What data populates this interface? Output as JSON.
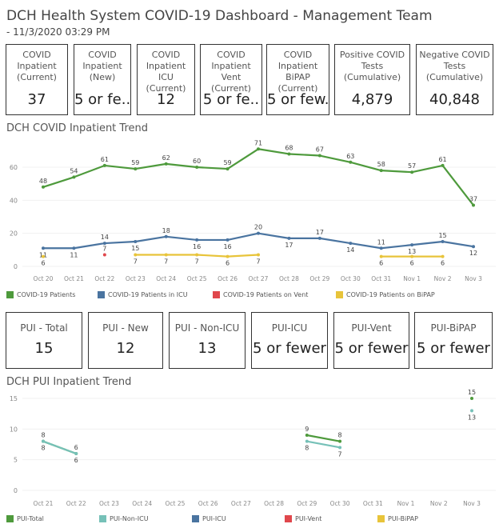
{
  "header": {
    "title": "DCH Health System COVID-19 Dashboard - Management Team",
    "subtitle": "- 11/3/2020 03:29 PM"
  },
  "kpis_top": [
    {
      "label": "COVID Inpatient (Current)",
      "value": "37"
    },
    {
      "label": "COVID Inpatient (New)",
      "value": "5 or fe.."
    },
    {
      "label": "COVID Inpatient ICU (Current)",
      "value": "12"
    },
    {
      "label": "COVID Inpatient Vent (Current)",
      "value": "5 or fe.."
    },
    {
      "label": "COVID Inpatient BiPAP (Current)",
      "value": "5 or few.."
    },
    {
      "label": "Positive COVID Tests (Cumulative)",
      "value": "4,879"
    },
    {
      "label": "Negative COVID Tests (Cumulative)",
      "value": "40,848"
    }
  ],
  "kpis_pui": [
    {
      "label": "PUI - Total",
      "value": "15"
    },
    {
      "label": "PUI - New",
      "value": "12"
    },
    {
      "label": "PUI - Non-ICU",
      "value": "13"
    },
    {
      "label": "PUI-ICU",
      "value": "5 or fewer"
    },
    {
      "label": "PUI-Vent",
      "value": "5 or fewer"
    },
    {
      "label": "PUI-BiPAP",
      "value": "5 or fewer"
    }
  ],
  "chart_data": [
    {
      "type": "line",
      "title": "DCH COVID Inpatient Trend",
      "ylim": [
        0,
        75
      ],
      "yticks": [
        0,
        20,
        40,
        60
      ],
      "categories": [
        "Oct 20",
        "Oct 21",
        "Oct 22",
        "Oct 23",
        "Oct 24",
        "Oct 25",
        "Oct 26",
        "Oct 27",
        "Oct 28",
        "Oct 29",
        "Oct 30",
        "Oct 31",
        "Nov 1",
        "Nov 2",
        "Nov 3"
      ],
      "series": [
        {
          "name": "COVID-19 Patients",
          "color": "#4e9a3c",
          "values": [
            48,
            54,
            61,
            59,
            62,
            60,
            59,
            71,
            68,
            67,
            63,
            58,
            57,
            61,
            37
          ]
        },
        {
          "name": "COVID-19 Patients in ICU",
          "color": "#4a74a0",
          "values": [
            11,
            11,
            14,
            15,
            18,
            16,
            16,
            20,
            17,
            17,
            14,
            11,
            13,
            15,
            12
          ]
        },
        {
          "name": "COVID-19 Patients on Vent",
          "color": "#e0474c",
          "values": [
            null,
            null,
            7,
            null,
            null,
            null,
            null,
            null,
            null,
            null,
            null,
            null,
            null,
            null,
            null
          ]
        },
        {
          "name": "COVID-19 Patients on BiPAP",
          "color": "#e8c43a",
          "values": [
            6,
            null,
            null,
            7,
            7,
            7,
            6,
            7,
            null,
            null,
            null,
            6,
            6,
            6,
            null
          ]
        }
      ]
    },
    {
      "type": "line",
      "title": "DCH PUI Inpatient Trend",
      "ylim": [
        0,
        16
      ],
      "yticks": [
        0,
        5,
        10,
        15
      ],
      "categories": [
        "Oct 21",
        "Oct 22",
        "Oct 23",
        "Oct 24",
        "Oct 25",
        "Oct 26",
        "Oct 27",
        "Oct 28",
        "Oct 29",
        "Oct 30",
        "Oct 31",
        "Nov 1",
        "Nov 2",
        "Nov 3"
      ],
      "series": [
        {
          "name": "PUI-Total",
          "color": "#4e9a3c",
          "values": [
            8,
            6,
            null,
            null,
            null,
            null,
            null,
            null,
            9,
            8,
            null,
            null,
            null,
            15
          ]
        },
        {
          "name": "PUI-Non-ICU",
          "color": "#76c1b8",
          "values": [
            8,
            6,
            null,
            null,
            null,
            null,
            null,
            null,
            8,
            7,
            null,
            null,
            null,
            13
          ]
        },
        {
          "name": "PUI-ICU",
          "color": "#4a74a0",
          "values": [
            null,
            null,
            null,
            null,
            null,
            null,
            null,
            null,
            null,
            null,
            null,
            null,
            null,
            null
          ]
        },
        {
          "name": "PUI-Vent",
          "color": "#e0474c",
          "values": [
            null,
            null,
            null,
            null,
            null,
            null,
            null,
            null,
            null,
            null,
            null,
            null,
            null,
            null
          ]
        },
        {
          "name": "PUI-BiPAP",
          "color": "#e8c43a",
          "values": [
            null,
            null,
            null,
            null,
            null,
            null,
            null,
            null,
            null,
            null,
            null,
            null,
            null,
            null
          ]
        }
      ]
    }
  ]
}
